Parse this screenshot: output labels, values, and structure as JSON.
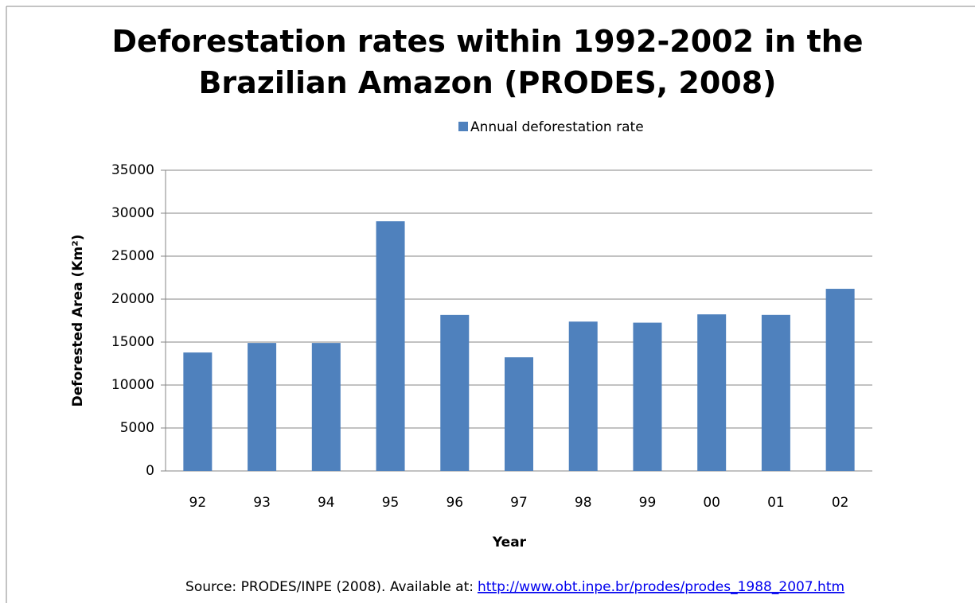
{
  "chart_data": {
    "type": "bar",
    "title": "Deforestation rates within 1992-2002 in the Brazilian Amazon (PRODES, 2008)",
    "x_label": "Year",
    "y_label": "Deforested  Area (Km²)",
    "categories": [
      "92",
      "93",
      "94",
      "95",
      "96",
      "97",
      "98",
      "99",
      "00",
      "01",
      "02"
    ],
    "series": [
      {
        "name": "Annual deforestation rate",
        "color": "#4f81bd",
        "values": [
          13786,
          14896,
          14896,
          29059,
          18161,
          13227,
          17383,
          17259,
          18226,
          18165,
          21200
        ]
      }
    ],
    "ylim": [
      0,
      35000
    ],
    "yticks": [
      0,
      5000,
      10000,
      15000,
      20000,
      25000,
      30000,
      35000
    ],
    "grid": true,
    "legend": "top",
    "source": "Source: PRODES/INPE (2008). Available at:",
    "source_url": "http://www.obt.inpe.br/prodes/prodes_1988_2007.htm"
  }
}
